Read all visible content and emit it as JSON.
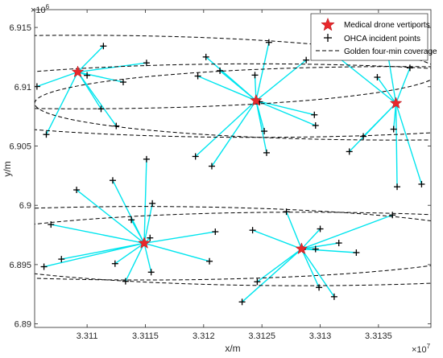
{
  "chart_data": {
    "type": "scatter",
    "xlabel": "x/m",
    "ylabel": "y/m",
    "x_exponent_label": "×10",
    "x_exponent_power": "7",
    "y_exponent_label": "×10",
    "y_exponent_power": "6",
    "xlim": [
      3.31055,
      3.31395
    ],
    "ylim": [
      6.8897,
      6.9165
    ],
    "x_ticks": [
      3.311,
      3.3115,
      3.312,
      3.3125,
      3.313,
      3.3135
    ],
    "x_tick_labels": [
      "3.311",
      "3.3115",
      "3.312",
      "3.3125",
      "3.313",
      "3.3135"
    ],
    "y_ticks": [
      6.89,
      6.895,
      6.9,
      6.905,
      6.91,
      6.915
    ],
    "y_tick_labels": [
      "6.89",
      "6.895",
      "6.9",
      "6.905",
      "6.91",
      "6.915"
    ],
    "grid": false,
    "legend_position": "top-right",
    "legend": [
      {
        "label": "Medical drone vertiports",
        "marker": "star"
      },
      {
        "label": "OHCA incident points",
        "marker": "plus"
      },
      {
        "label": "Golden four-min coverage",
        "marker": "dashed-line"
      }
    ],
    "colors": {
      "vertiport": "#e8282b",
      "connection": "#00e5ee",
      "incident": "#000000",
      "coverage": "#000000",
      "axes": "#262626"
    },
    "coverage_radius": 0.0031,
    "clusters": [
      {
        "vertiport": [
          3.31092,
          6.91124
        ],
        "incidents": [
          [
            3.31057,
            6.91002
          ],
          [
            3.31065,
            6.90597
          ],
          [
            3.311,
            6.91096
          ],
          [
            3.31114,
            6.91343
          ],
          [
            3.31112,
            6.90813
          ],
          [
            3.31125,
            6.90669
          ],
          [
            3.31131,
            6.91039
          ],
          [
            3.31151,
            6.91201
          ]
        ]
      },
      {
        "vertiport": [
          3.31245,
          6.90883
        ],
        "incidents": [
          [
            3.31193,
            6.90412
          ],
          [
            3.31195,
            6.9109
          ],
          [
            3.31202,
            6.91251
          ],
          [
            3.31207,
            6.9033
          ],
          [
            3.31214,
            6.91135
          ],
          [
            3.31244,
            6.91098
          ],
          [
            3.31248,
            6.90873
          ],
          [
            3.31252,
            6.90625
          ],
          [
            3.31254,
            6.90443
          ],
          [
            3.31256,
            6.91374
          ],
          [
            3.31288,
            6.91225
          ],
          [
            3.31295,
            6.90763
          ],
          [
            3.31296,
            6.90673
          ]
        ]
      },
      {
        "vertiport": [
          3.31365,
          6.9086
        ],
        "incidents": [
          [
            3.31314,
            6.91259
          ],
          [
            3.31325,
            6.90453
          ],
          [
            3.31337,
            6.90581
          ],
          [
            3.31349,
            6.9108
          ],
          [
            3.31358,
            6.91279
          ],
          [
            3.31363,
            6.90642
          ],
          [
            3.31366,
            6.90156
          ],
          [
            3.31377,
            6.91159
          ],
          [
            3.31387,
            6.90178
          ]
        ]
      },
      {
        "vertiport": [
          3.31149,
          6.8968
        ],
        "incidents": [
          [
            3.31063,
            6.89482
          ],
          [
            3.31069,
            6.89838
          ],
          [
            3.31078,
            6.89546
          ],
          [
            3.31091,
            6.9013
          ],
          [
            3.31122,
            6.9021
          ],
          [
            3.31124,
            6.89508
          ],
          [
            3.31133,
            6.89359
          ],
          [
            3.31138,
            6.89877
          ],
          [
            3.31151,
            6.90389
          ],
          [
            3.31154,
            6.89725
          ],
          [
            3.31155,
            6.89436
          ],
          [
            3.31156,
            6.90016
          ],
          [
            3.31205,
            6.89528
          ],
          [
            3.3121,
            6.89777
          ]
        ]
      },
      {
        "vertiport": [
          3.31284,
          6.89632
        ],
        "incidents": [
          [
            3.31233,
            6.89185
          ],
          [
            3.31242,
            6.8979
          ],
          [
            3.31246,
            6.89355
          ],
          [
            3.31271,
            6.89946
          ],
          [
            3.31285,
            6.89628
          ],
          [
            3.31296,
            6.89631
          ],
          [
            3.31299,
            6.89307
          ],
          [
            3.313,
            6.89801
          ],
          [
            3.31312,
            6.89229
          ],
          [
            3.31316,
            6.89682
          ],
          [
            3.31331,
            6.89601
          ],
          [
            3.31362,
            6.89918
          ]
        ]
      }
    ]
  }
}
